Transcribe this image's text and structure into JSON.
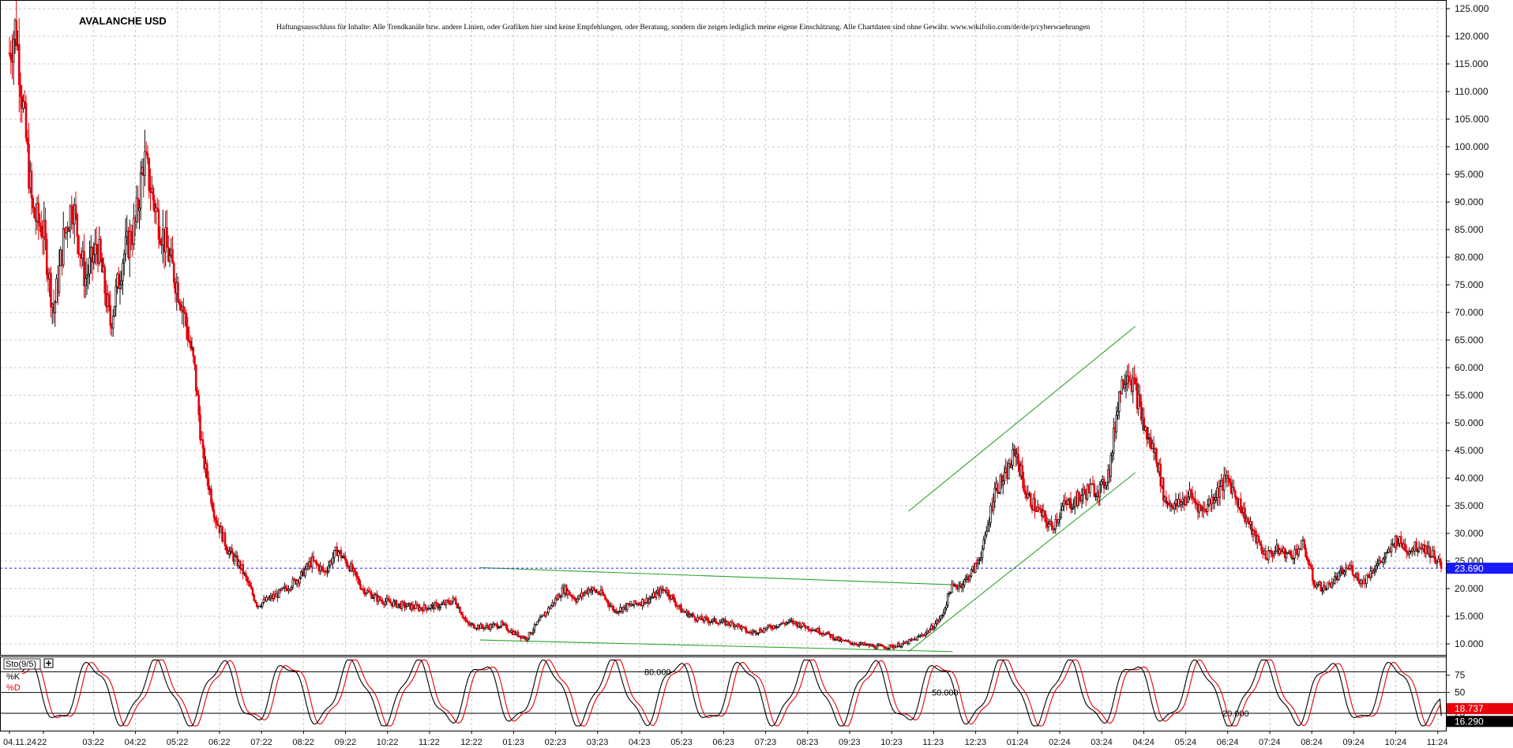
{
  "title": "AVALANCHE USD",
  "disclaimer": "Haftungsausschluss für Inhalte: Alle Trendkanäle bzw. andere Linien, oder Grafiken hier sind keine Empfehlungen, oder Beratung, sondern die zeigen lediglich meine eigene Einschätzung. Alle Chartdaten sind ohne Gewähr. www.wikifolio.com/de/de/p/cyberwaehrungen",
  "colors": {
    "up": "#111111",
    "down": "#e8000b",
    "trendline": "#2ea32e",
    "current_line": "#1a1aff",
    "k_line": "#000000",
    "d_line": "#e8000b",
    "tag_blue": "#1a1aff",
    "tag_red": "#e8000b",
    "tag_black": "#000000"
  },
  "chart_data": [
    {
      "type": "candlestick",
      "title": "AVALANCHE USD",
      "ylim": [
        7,
        127
      ],
      "yticks": [
        10,
        15,
        20,
        25,
        30,
        35,
        40,
        45,
        50,
        55,
        60,
        65,
        70,
        75,
        80,
        85,
        90,
        95,
        100,
        105,
        110,
        115,
        120,
        125
      ],
      "ytick_labels": [
        "10.000",
        "15.000",
        "20.000",
        "25.000",
        "30.000",
        "35.000",
        "40.000",
        "45.000",
        "50.000",
        "55.000",
        "60.000",
        "65.000",
        "70.000",
        "75.000",
        "80.000",
        "85.000",
        "90.000",
        "95.000",
        "100.000",
        "105.000",
        "110.000",
        "115.000",
        "120.000",
        "125.000"
      ],
      "x_labels": [
        "04.11.24",
        "22",
        "03:22",
        "04:22",
        "05:22",
        "06:22",
        "07:22",
        "08:22",
        "09:22",
        "10:22",
        "11:22",
        "12:22",
        "01:23",
        "02:23",
        "03:23",
        "04:23",
        "05:23",
        "06:23",
        "07:23",
        "08:23",
        "09:23",
        "10:23",
        "11:23",
        "12:23",
        "01:24",
        "02:24",
        "03:24",
        "04:24",
        "05:24",
        "06:24",
        "07:24",
        "08:24",
        "09:24",
        "10:24",
        "11:24"
      ],
      "x_tick_months": [
        0,
        1,
        2,
        3,
        4,
        5,
        6,
        7,
        8,
        9,
        10,
        11,
        12,
        13,
        14,
        15,
        16,
        17,
        18,
        19,
        20,
        21,
        22,
        23,
        24,
        25,
        26,
        27,
        28,
        29,
        30,
        31,
        32,
        33,
        34
      ],
      "price_path": [
        {
          "m": 0.0,
          "p": 117
        },
        {
          "m": 0.15,
          "p": 122
        },
        {
          "m": 0.35,
          "p": 105
        },
        {
          "m": 0.55,
          "p": 88
        },
        {
          "m": 0.8,
          "p": 85
        },
        {
          "m": 1.05,
          "p": 70
        },
        {
          "m": 1.3,
          "p": 84
        },
        {
          "m": 1.5,
          "p": 90
        },
        {
          "m": 1.8,
          "p": 76
        },
        {
          "m": 2.1,
          "p": 82
        },
        {
          "m": 2.4,
          "p": 68
        },
        {
          "m": 2.7,
          "p": 80
        },
        {
          "m": 3.0,
          "p": 86
        },
        {
          "m": 3.2,
          "p": 98
        },
        {
          "m": 3.5,
          "p": 88
        },
        {
          "m": 3.8,
          "p": 80
        },
        {
          "m": 4.1,
          "p": 72
        },
        {
          "m": 4.4,
          "p": 60
        },
        {
          "m": 4.6,
          "p": 44
        },
        {
          "m": 4.9,
          "p": 33
        },
        {
          "m": 5.2,
          "p": 27
        },
        {
          "m": 5.5,
          "p": 24
        },
        {
          "m": 5.9,
          "p": 17
        },
        {
          "m": 6.4,
          "p": 19
        },
        {
          "m": 6.9,
          "p": 22
        },
        {
          "m": 7.2,
          "p": 25
        },
        {
          "m": 7.5,
          "p": 23
        },
        {
          "m": 7.8,
          "p": 27
        },
        {
          "m": 8.1,
          "p": 24
        },
        {
          "m": 8.4,
          "p": 20
        },
        {
          "m": 8.8,
          "p": 18
        },
        {
          "m": 9.3,
          "p": 17
        },
        {
          "m": 9.8,
          "p": 16.5
        },
        {
          "m": 10.3,
          "p": 17
        },
        {
          "m": 10.6,
          "p": 18
        },
        {
          "m": 10.9,
          "p": 13.5
        },
        {
          "m": 11.3,
          "p": 13
        },
        {
          "m": 11.7,
          "p": 13.5
        },
        {
          "m": 12.0,
          "p": 12
        },
        {
          "m": 12.3,
          "p": 11
        },
        {
          "m": 12.6,
          "p": 14
        },
        {
          "m": 12.9,
          "p": 17
        },
        {
          "m": 13.2,
          "p": 20
        },
        {
          "m": 13.5,
          "p": 18
        },
        {
          "m": 13.8,
          "p": 20
        },
        {
          "m": 14.1,
          "p": 19
        },
        {
          "m": 14.4,
          "p": 16
        },
        {
          "m": 14.8,
          "p": 17
        },
        {
          "m": 15.2,
          "p": 18
        },
        {
          "m": 15.6,
          "p": 20
        },
        {
          "m": 16.0,
          "p": 16
        },
        {
          "m": 16.4,
          "p": 14.5
        },
        {
          "m": 16.9,
          "p": 14
        },
        {
          "m": 17.3,
          "p": 13.5
        },
        {
          "m": 17.6,
          "p": 12
        },
        {
          "m": 17.9,
          "p": 12.5
        },
        {
          "m": 18.3,
          "p": 13.5
        },
        {
          "m": 18.6,
          "p": 14
        },
        {
          "m": 19.0,
          "p": 13
        },
        {
          "m": 19.4,
          "p": 12
        },
        {
          "m": 19.8,
          "p": 10.5
        },
        {
          "m": 20.2,
          "p": 10
        },
        {
          "m": 20.6,
          "p": 9.5
        },
        {
          "m": 21.0,
          "p": 9.5
        },
        {
          "m": 21.3,
          "p": 10
        },
        {
          "m": 21.6,
          "p": 11
        },
        {
          "m": 21.9,
          "p": 12.5
        },
        {
          "m": 22.2,
          "p": 15
        },
        {
          "m": 22.4,
          "p": 20
        },
        {
          "m": 22.7,
          "p": 21
        },
        {
          "m": 23.0,
          "p": 24
        },
        {
          "m": 23.2,
          "p": 28
        },
        {
          "m": 23.45,
          "p": 38
        },
        {
          "m": 23.7,
          "p": 40
        },
        {
          "m": 23.95,
          "p": 45
        },
        {
          "m": 24.2,
          "p": 37
        },
        {
          "m": 24.5,
          "p": 34
        },
        {
          "m": 24.8,
          "p": 31
        },
        {
          "m": 25.1,
          "p": 35
        },
        {
          "m": 25.4,
          "p": 36
        },
        {
          "m": 25.7,
          "p": 38
        },
        {
          "m": 26.0,
          "p": 38
        },
        {
          "m": 26.2,
          "p": 42
        },
        {
          "m": 26.4,
          "p": 55
        },
        {
          "m": 26.6,
          "p": 60
        },
        {
          "m": 26.8,
          "p": 56
        },
        {
          "m": 27.05,
          "p": 48
        },
        {
          "m": 27.3,
          "p": 44
        },
        {
          "m": 27.5,
          "p": 36
        },
        {
          "m": 27.8,
          "p": 35
        },
        {
          "m": 28.1,
          "p": 37
        },
        {
          "m": 28.4,
          "p": 34
        },
        {
          "m": 28.7,
          "p": 37
        },
        {
          "m": 29.0,
          "p": 40
        },
        {
          "m": 29.3,
          "p": 35
        },
        {
          "m": 29.6,
          "p": 30
        },
        {
          "m": 29.9,
          "p": 26
        },
        {
          "m": 30.2,
          "p": 27
        },
        {
          "m": 30.5,
          "p": 26
        },
        {
          "m": 30.8,
          "p": 28
        },
        {
          "m": 31.05,
          "p": 21
        },
        {
          "m": 31.3,
          "p": 20
        },
        {
          "m": 31.6,
          "p": 22
        },
        {
          "m": 31.9,
          "p": 24
        },
        {
          "m": 32.2,
          "p": 21
        },
        {
          "m": 32.5,
          "p": 24
        },
        {
          "m": 32.8,
          "p": 26
        },
        {
          "m": 33.0,
          "p": 29
        },
        {
          "m": 33.3,
          "p": 27
        },
        {
          "m": 33.6,
          "p": 28
        },
        {
          "m": 33.9,
          "p": 26
        },
        {
          "m": 34.1,
          "p": 23.69
        }
      ],
      "current_price": 23.69,
      "current_price_label": "23.690",
      "trendlines": [
        {
          "m1": 11.2,
          "p1": 23.8,
          "m2": 22.45,
          "p2": 20.7
        },
        {
          "m1": 11.2,
          "p1": 10.7,
          "m2": 22.45,
          "p2": 8.6
        },
        {
          "m1": 21.4,
          "p1": 34.0,
          "m2": 26.8,
          "p2": 67.5
        },
        {
          "m1": 21.4,
          "p1": 8.6,
          "m2": 26.8,
          "p2": 41.0
        }
      ]
    },
    {
      "type": "line",
      "indicator": "Sto(9/5)",
      "ylim": [
        -5,
        102
      ],
      "yticks": [
        20,
        50,
        75
      ],
      "ytick_labels": [
        "20",
        "50",
        "75"
      ],
      "levels": [
        20,
        50,
        80
      ],
      "level_labels": [
        "20.000",
        "50.000",
        "80.000"
      ],
      "series": [
        {
          "name": "%K",
          "cycle_months": 1.55,
          "last_value": 16.29,
          "last_label": "16.290"
        },
        {
          "name": "%D",
          "cycle_months": 1.55,
          "lag_months": 0.12,
          "last_value": 18.737,
          "last_label": "18.737"
        }
      ]
    }
  ]
}
